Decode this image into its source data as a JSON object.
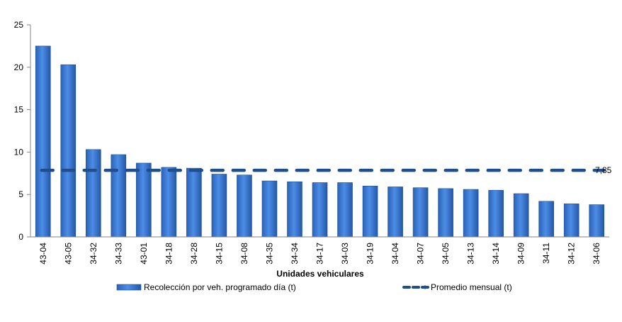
{
  "chart_data": {
    "type": "bar",
    "xlabel": "Unidades vehiculares",
    "ylabel": "",
    "ylim": [
      0,
      25
    ],
    "yticks": [
      0,
      5,
      10,
      15,
      20,
      25
    ],
    "categories": [
      "43-04",
      "43-05",
      "34-32",
      "34-33",
      "43-01",
      "34-18",
      "34-28",
      "34-15",
      "34-08",
      "34-35",
      "34-34",
      "34-17",
      "34-03",
      "34-19",
      "34-04",
      "34-07",
      "34-05",
      "34-13",
      "34-14",
      "34-09",
      "34-11",
      "34-12",
      "34-06"
    ],
    "series": [
      {
        "name": "Recolección por veh. programado día (t)",
        "type": "bar",
        "color": "#3a7ad6",
        "values": [
          22.5,
          20.3,
          10.3,
          9.7,
          8.7,
          8.2,
          8.1,
          7.4,
          7.3,
          6.6,
          6.5,
          6.4,
          6.4,
          6.0,
          5.9,
          5.8,
          5.7,
          5.6,
          5.5,
          5.1,
          4.2,
          3.9,
          3.8
        ]
      },
      {
        "name": "Promedio mensual (t)",
        "type": "line",
        "style": "dashed",
        "color": "#1f4e8c",
        "value": 7.85,
        "label": "7,85"
      }
    ],
    "legend_position": "bottom",
    "grid": false
  }
}
